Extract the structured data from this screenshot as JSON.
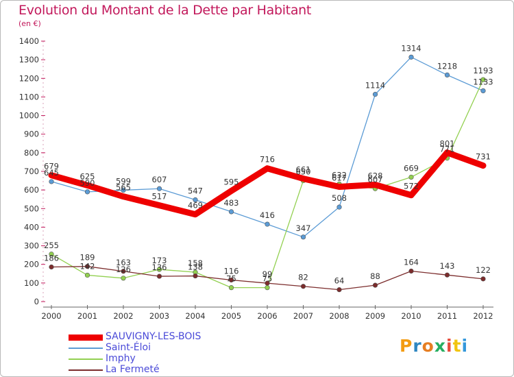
{
  "title": "Evolution du Montant de la Dette par Habitant",
  "unit": "(en €)",
  "logo": {
    "text": "Proxiti",
    "letter_colors": [
      "#f39c12",
      "#2e86c1",
      "#e67e22",
      "#27ae60",
      "#e74c3c",
      "#f1c40f",
      "#3498db"
    ]
  },
  "chart_data": {
    "type": "line",
    "x": [
      "2000",
      "2001",
      "2002",
      "2003",
      "2004",
      "2005",
      "2006",
      "2007",
      "2008",
      "2009",
      "2010",
      "2011",
      "2012"
    ],
    "ylim": [
      0,
      1400
    ],
    "yticks": [
      0,
      100,
      200,
      300,
      400,
      500,
      600,
      700,
      800,
      900,
      1000,
      1100,
      1200,
      1300,
      1400
    ],
    "grid": false,
    "legend_position": "bottom-left",
    "series": [
      {
        "name": "SAUVIGNY-LES-BOIS",
        "color": "#ee0000",
        "emphasis": true,
        "values": [
          679,
          625,
          565,
          517,
          469,
          595,
          716,
          661,
          617,
          628,
          572,
          801,
          731
        ],
        "labels": [
          "679",
          "625",
          "565",
          "517",
          "469",
          "595",
          "716",
          "661",
          "617",
          "628",
          "572",
          "801",
          "731"
        ]
      },
      {
        "name": "Saint-Éloi",
        "color": "#5b9bd5",
        "emphasis": false,
        "values": [
          645,
          590,
          599,
          607,
          547,
          483,
          416,
          347,
          508,
          1114,
          1314,
          1218,
          1133
        ],
        "labels": [
          "645",
          "590",
          "599",
          "607",
          "547",
          "483",
          "416",
          "347",
          "508",
          "1114",
          "1314",
          "1218",
          "1133"
        ]
      },
      {
        "name": "Imphy",
        "color": "#92d050",
        "emphasis": false,
        "values": [
          255,
          142,
          126,
          173,
          158,
          75,
          75,
          650,
          632,
          607,
          669,
          771,
          1193
        ],
        "labels": [
          "255",
          "142",
          "126",
          "173",
          "158",
          "75",
          "75",
          "650",
          "632",
          "607",
          "669",
          "771",
          "1193"
        ]
      },
      {
        "name": "La Fermeté",
        "color": "#7b2c2c",
        "emphasis": false,
        "values": [
          186,
          189,
          163,
          136,
          138,
          116,
          99,
          82,
          64,
          88,
          164,
          143,
          122
        ],
        "labels": [
          "186",
          "189",
          "163",
          "136",
          "138",
          "116",
          "99",
          "82",
          "64",
          "88",
          "164",
          "143",
          "122"
        ]
      }
    ]
  }
}
